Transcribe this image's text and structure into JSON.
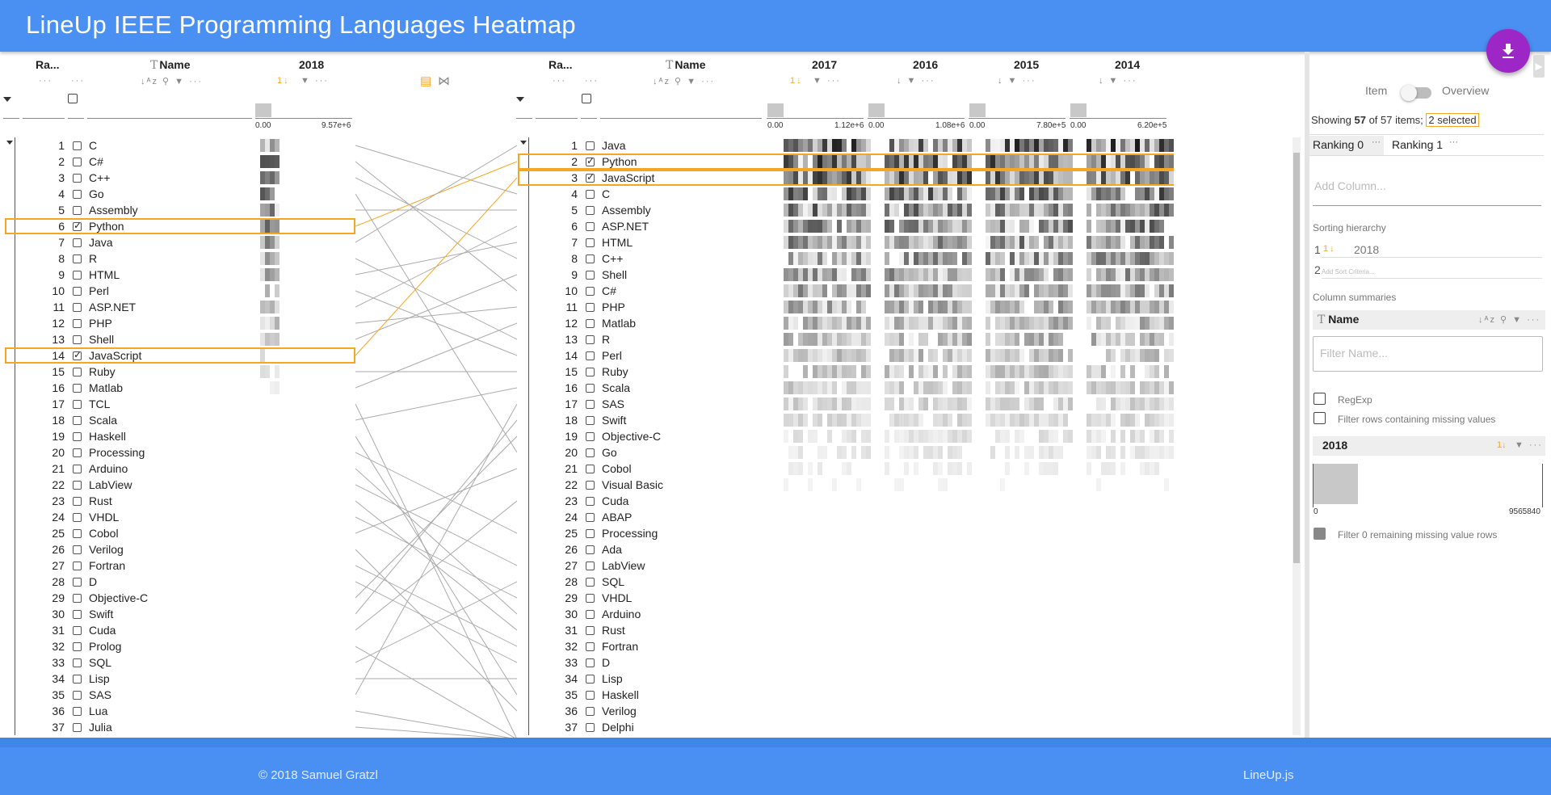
{
  "app": {
    "title": "LineUp IEEE Programming Languages Heatmap"
  },
  "footer": {
    "copyright": "© 2018 Samuel Gratzl",
    "link": "LineUp.js"
  },
  "icons": {
    "download": "download-icon",
    "sort_alpha": "sort-alpha-icon",
    "sort_num": "sort-numeric-icon",
    "search": "search-icon",
    "filter": "filter-icon",
    "more": "more-icon",
    "checkbox": "checkbox-icon"
  },
  "colors": {
    "accent": "#f5a623",
    "header": "#4a8ff2",
    "fab": "#9c27c6"
  },
  "left": {
    "headers": {
      "rank": "Ra...",
      "name": "Name",
      "year": "2018"
    },
    "axis": {
      "min": "0.00",
      "max": "9.57e+6"
    },
    "rows": [
      {
        "rank": "1",
        "name": "C",
        "checked": false
      },
      {
        "rank": "2",
        "name": "C#",
        "checked": false
      },
      {
        "rank": "3",
        "name": "C++",
        "checked": false
      },
      {
        "rank": "4",
        "name": "Go",
        "checked": false
      },
      {
        "rank": "5",
        "name": "Assembly",
        "checked": false
      },
      {
        "rank": "6",
        "name": "Python",
        "checked": true
      },
      {
        "rank": "7",
        "name": "Java",
        "checked": false
      },
      {
        "rank": "8",
        "name": "R",
        "checked": false
      },
      {
        "rank": "9",
        "name": "HTML",
        "checked": false
      },
      {
        "rank": "10",
        "name": "Perl",
        "checked": false
      },
      {
        "rank": "11",
        "name": "ASP.NET",
        "checked": false
      },
      {
        "rank": "12",
        "name": "PHP",
        "checked": false
      },
      {
        "rank": "13",
        "name": "Shell",
        "checked": false
      },
      {
        "rank": "14",
        "name": "JavaScript",
        "checked": true
      },
      {
        "rank": "15",
        "name": "Ruby",
        "checked": false
      },
      {
        "rank": "16",
        "name": "Matlab",
        "checked": false
      },
      {
        "rank": "17",
        "name": "TCL",
        "checked": false
      },
      {
        "rank": "18",
        "name": "Scala",
        "checked": false
      },
      {
        "rank": "19",
        "name": "Haskell",
        "checked": false
      },
      {
        "rank": "20",
        "name": "Processing",
        "checked": false
      },
      {
        "rank": "21",
        "name": "Arduino",
        "checked": false
      },
      {
        "rank": "22",
        "name": "LabView",
        "checked": false
      },
      {
        "rank": "23",
        "name": "Rust",
        "checked": false
      },
      {
        "rank": "24",
        "name": "VHDL",
        "checked": false
      },
      {
        "rank": "25",
        "name": "Cobol",
        "checked": false
      },
      {
        "rank": "26",
        "name": "Verilog",
        "checked": false
      },
      {
        "rank": "27",
        "name": "Fortran",
        "checked": false
      },
      {
        "rank": "28",
        "name": "D",
        "checked": false
      },
      {
        "rank": "29",
        "name": "Objective-C",
        "checked": false
      },
      {
        "rank": "30",
        "name": "Swift",
        "checked": false
      },
      {
        "rank": "31",
        "name": "Cuda",
        "checked": false
      },
      {
        "rank": "32",
        "name": "Prolog",
        "checked": false
      },
      {
        "rank": "33",
        "name": "SQL",
        "checked": false
      },
      {
        "rank": "34",
        "name": "Lisp",
        "checked": false
      },
      {
        "rank": "35",
        "name": "SAS",
        "checked": false
      },
      {
        "rank": "36",
        "name": "Lua",
        "checked": false
      },
      {
        "rank": "37",
        "name": "Julia",
        "checked": false
      }
    ]
  },
  "right": {
    "headers": {
      "rank": "Ra...",
      "name": "Name",
      "years": [
        "2017",
        "2016",
        "2015",
        "2014"
      ]
    },
    "axes": [
      {
        "min": "0.00",
        "max": "1.12e+6"
      },
      {
        "min": "0.00",
        "max": "1.08e+6"
      },
      {
        "min": "0.00",
        "max": "7.80e+5"
      },
      {
        "min": "0.00",
        "max": "6.20e+5"
      }
    ],
    "rows": [
      {
        "rank": "1",
        "name": "Java",
        "checked": false
      },
      {
        "rank": "2",
        "name": "Python",
        "checked": true
      },
      {
        "rank": "3",
        "name": "JavaScript",
        "checked": true
      },
      {
        "rank": "4",
        "name": "C",
        "checked": false
      },
      {
        "rank": "5",
        "name": "Assembly",
        "checked": false
      },
      {
        "rank": "6",
        "name": "ASP.NET",
        "checked": false
      },
      {
        "rank": "7",
        "name": "HTML",
        "checked": false
      },
      {
        "rank": "8",
        "name": "C++",
        "checked": false
      },
      {
        "rank": "9",
        "name": "Shell",
        "checked": false
      },
      {
        "rank": "10",
        "name": "C#",
        "checked": false
      },
      {
        "rank": "11",
        "name": "PHP",
        "checked": false
      },
      {
        "rank": "12",
        "name": "Matlab",
        "checked": false
      },
      {
        "rank": "13",
        "name": "R",
        "checked": false
      },
      {
        "rank": "14",
        "name": "Perl",
        "checked": false
      },
      {
        "rank": "15",
        "name": "Ruby",
        "checked": false
      },
      {
        "rank": "16",
        "name": "Scala",
        "checked": false
      },
      {
        "rank": "17",
        "name": "SAS",
        "checked": false
      },
      {
        "rank": "18",
        "name": "Swift",
        "checked": false
      },
      {
        "rank": "19",
        "name": "Objective-C",
        "checked": false
      },
      {
        "rank": "20",
        "name": "Go",
        "checked": false
      },
      {
        "rank": "21",
        "name": "Cobol",
        "checked": false
      },
      {
        "rank": "22",
        "name": "Visual Basic",
        "checked": false
      },
      {
        "rank": "23",
        "name": "Cuda",
        "checked": false
      },
      {
        "rank": "24",
        "name": "ABAP",
        "checked": false
      },
      {
        "rank": "25",
        "name": "Processing",
        "checked": false
      },
      {
        "rank": "26",
        "name": "Ada",
        "checked": false
      },
      {
        "rank": "27",
        "name": "LabView",
        "checked": false
      },
      {
        "rank": "28",
        "name": "SQL",
        "checked": false
      },
      {
        "rank": "29",
        "name": "VHDL",
        "checked": false
      },
      {
        "rank": "30",
        "name": "Arduino",
        "checked": false
      },
      {
        "rank": "31",
        "name": "Rust",
        "checked": false
      },
      {
        "rank": "32",
        "name": "Fortran",
        "checked": false
      },
      {
        "rank": "33",
        "name": "D",
        "checked": false
      },
      {
        "rank": "34",
        "name": "Lisp",
        "checked": false
      },
      {
        "rank": "35",
        "name": "Haskell",
        "checked": false
      },
      {
        "rank": "36",
        "name": "Verilog",
        "checked": false
      },
      {
        "rank": "37",
        "name": "Delphi",
        "checked": false
      }
    ]
  },
  "panel": {
    "toggle_item": "Item",
    "toggle_overview": "Overview",
    "showing_prefix": "Showing ",
    "showing_count": "57",
    "showing_mid": " of 57 items;",
    "selected": "2 selected",
    "tabs": [
      "Ranking 0",
      "Ranking 1"
    ],
    "add_column": "Add Column...",
    "sorting_title": "Sorting hierarchy",
    "sort1_index": "1",
    "sort1_value": "2018",
    "sort2_index": "2",
    "sort2_placeholder": "Add Sort Criteria...",
    "summaries_title": "Column summaries",
    "name_summary": "Name",
    "filter_placeholder": "Filter Name...",
    "regexp": "RegExp",
    "filter_missing": "Filter rows containing missing values",
    "year_summary": "2018",
    "hist_min": "0",
    "hist_max": "9565840",
    "filter_remaining": "Filter 0 remaining missing value rows"
  }
}
